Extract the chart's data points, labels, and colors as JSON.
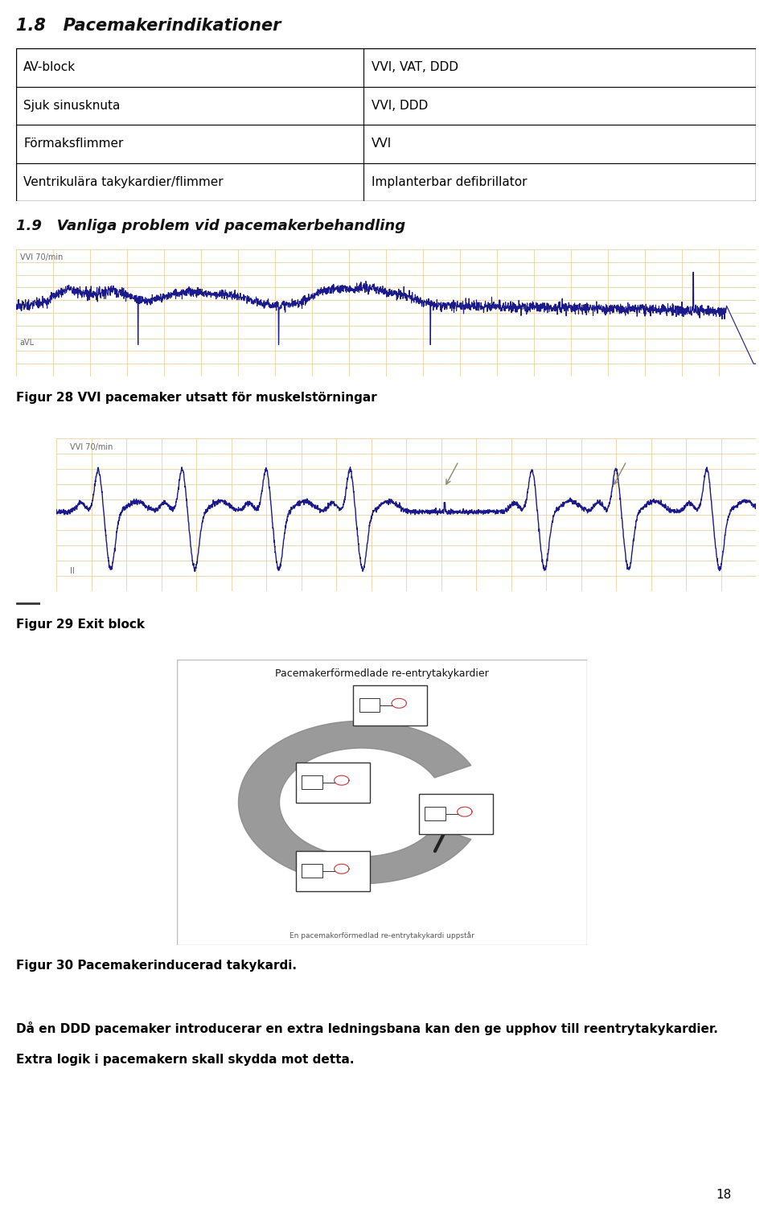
{
  "page_title": "1.8   Pacemakerindikationer",
  "section_title": "1.9   Vanliga problem vid pacemakerbehandling",
  "table_rows": [
    [
      "AV-block",
      "VVI, VAT, DDD"
    ],
    [
      "Sjuk sinusknuta",
      "VVI, DDD"
    ],
    [
      "Förmaksflimmer",
      "VVI"
    ],
    [
      "Ventrikulära takykardier/flimmer",
      "Implanterbar defibrillator"
    ]
  ],
  "fig28_label": "Figur 28 VVI pacemaker utsatt för muskelstörningar",
  "fig28_ecg_label": "VVI 70/min",
  "fig28_lead_label": "aVL",
  "fig29_label": "Figur 29 Exit block",
  "fig29_ecg_label": "VVI 70/min",
  "fig29_lead_label": "II",
  "fig30_label": "Figur 30 Pacemakerinducerad takykardi.",
  "fig30_title": "Pacemakerförmedlade re-entrytakykardier",
  "fig30_subtitle": "En pacemakorförmedlad re-entrytakykardi uppstår",
  "bottom_text1": "Då en DDD pacemaker introducerar en extra ledningsbana kan den ge upphov till reentrytakykardier.",
  "bottom_text2": "Extra logik i pacemakern skall skydda mot detta.",
  "page_number": "18",
  "bg_color": "#ffffff",
  "ecg_bg_color": "#fefee8",
  "ecg_grid_color": "#e8c890",
  "ecg_line_color": "#1a1a8c",
  "table_border_color": "#000000",
  "text_color": "#000000"
}
